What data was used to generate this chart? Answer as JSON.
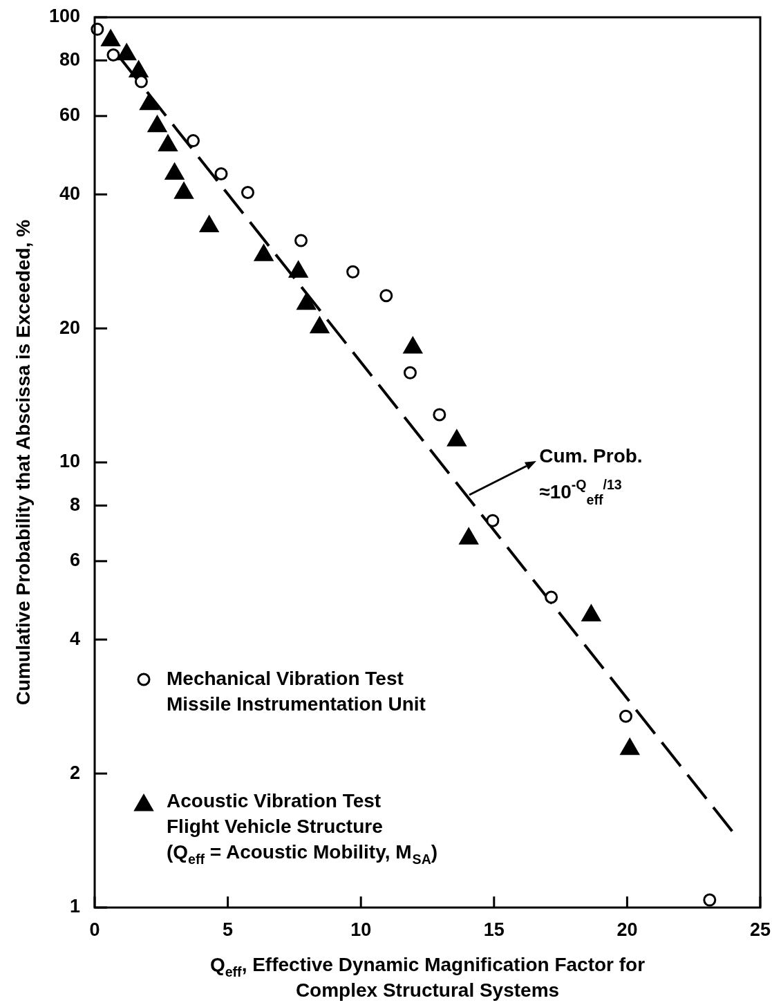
{
  "chart_data": {
    "type": "scatter",
    "xlabel": "Q$_{eff}$, Effective Dynamic Magnification Factor for\nComplex Structural Systems",
    "ylabel": "Cumulative Probability that Abscissa is Exceeded, %",
    "log": "y",
    "xlim": [
      0,
      25
    ],
    "ylim": [
      1,
      100
    ],
    "xticks": [
      0,
      5,
      10,
      15,
      20,
      25
    ],
    "yticks": [
      1,
      2,
      4,
      6,
      8,
      10,
      20,
      40,
      60,
      80,
      100
    ],
    "legend": "bottom left",
    "series": [
      {
        "name": "Mechanical Vibration Test\nMissile Instrumentation Unit",
        "color": "#000000",
        "marker": "circle",
        "x": [
          0.1,
          0.7,
          1.75,
          3.7,
          4.75,
          5.75,
          7.75,
          9.7,
          10.95,
          11.85,
          12.95,
          14.95,
          17.15,
          19.95,
          23.1
        ],
        "values": [
          94,
          82.3,
          71.7,
          52.8,
          44.5,
          40.4,
          31.5,
          26.8,
          23.7,
          15.9,
          12.8,
          7.4,
          4.98,
          2.69,
          1.04
        ]
      },
      {
        "name": "Acoustic Vibration Test\nFlight Vehicle Structure\n(Q$_{eff}$ = Acoustic Mobility, M$_{SA}$)",
        "color": "#000000",
        "marker": "triangle",
        "x": [
          0.6,
          1.2,
          1.65,
          2.05,
          2.35,
          2.75,
          3,
          3.35,
          4.3,
          6.35,
          7.65,
          7.95,
          8.45,
          11.95,
          13.6,
          14.05,
          18.65,
          20.1
        ],
        "values": [
          88.7,
          82.5,
          75.5,
          63.8,
          56.9,
          51.5,
          44.5,
          40.3,
          33.9,
          29.2,
          26.8,
          22.7,
          20.1,
          18.1,
          11.2,
          6.74,
          4.53,
          2.27
        ]
      },
      {
        "type": "line",
        "color": "#000000",
        "line_style": "dashed",
        "marker": "none",
        "x": [
          1,
          24
        ],
        "values": [
          80.4,
          1.47
        ]
      }
    ],
    "annotations": [
      {
        "text": "Cum. Prob.\n≈10$^{-Q}$$_{eff}$$^{/13}$",
        "x": 14,
        "y": 8.4
      }
    ]
  }
}
